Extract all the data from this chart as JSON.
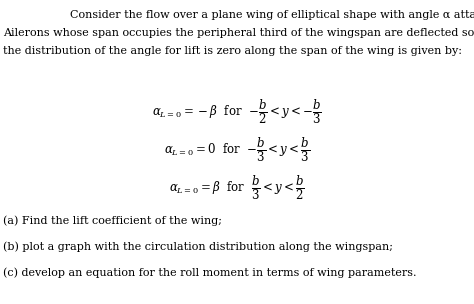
{
  "background_color": "#ffffff",
  "figsize": [
    4.74,
    3.04
  ],
  "dpi": 100,
  "para_line1": "    Consider the flow over a plane wing of elliptical shape with angle α attack.",
  "para_line2": "Ailerons whose span occupies the peripheral third of the wingspan are deflected so that",
  "para_line3": "the distribution of the angle for lift is zero along the span of the wing is given by:",
  "eq1": "$\\alpha_{L=0} = -\\beta$  for  $-\\dfrac{b}{2} < y < -\\dfrac{b}{3}$",
  "eq2": "$\\alpha_{L=0} = 0$  for  $-\\dfrac{b}{3} < y < \\dfrac{b}{3}$",
  "eq3": "$\\alpha_{L=0} = \\beta$  for  $\\dfrac{b}{3} < y < \\dfrac{b}{2}$",
  "qa": "(a) Find the lift coefficient of the wing;",
  "qb": "(b) plot a graph with the circulation distribution along the wingspan;",
  "qc": "(c) develop an equation for the roll moment in terms of wing parameters.",
  "text_color": "#000000",
  "font_size_para": 8.0,
  "font_size_eq": 8.5,
  "font_size_qa": 8.0
}
